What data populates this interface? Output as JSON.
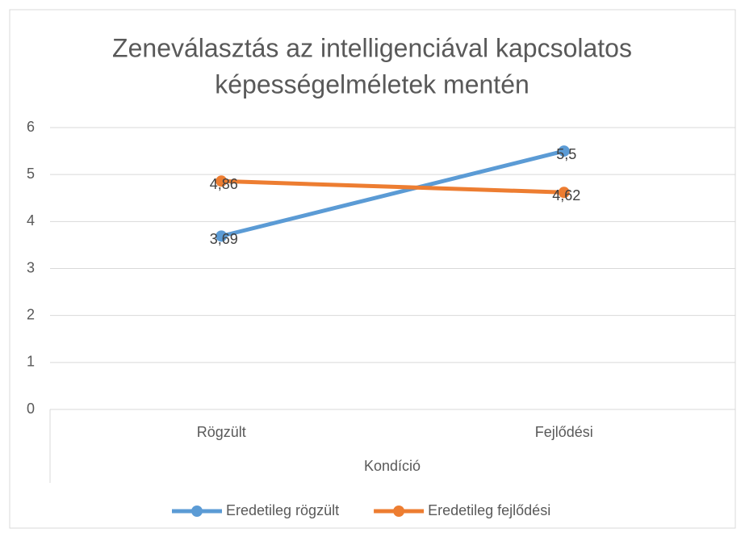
{
  "chart_data": {
    "type": "line",
    "title": [
      "Zeneválasztás az intelligenciával kapcsolatos",
      "képességelméletek mentén"
    ],
    "x_label": "Kondíció",
    "categories": [
      "Rögzült",
      "Fejlődési"
    ],
    "series": [
      {
        "name": "Eredetileg rögzült",
        "color": "#5b9bd5",
        "values": [
          3.69,
          5.5
        ],
        "value_labels": [
          "3,69",
          "5,5"
        ]
      },
      {
        "name": "Eredetileg fejlődési",
        "color": "#ed7d31",
        "values": [
          4.86,
          4.62
        ],
        "value_labels": [
          "4,86",
          "4,62"
        ]
      }
    ],
    "ylim": [
      0,
      6
    ],
    "yticks": [
      0,
      1,
      2,
      3,
      4,
      5,
      6
    ],
    "grid": true,
    "legend": "bottom"
  }
}
